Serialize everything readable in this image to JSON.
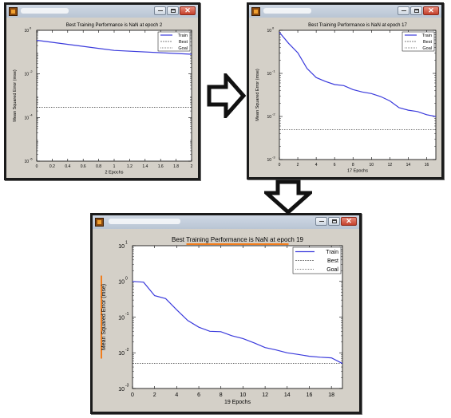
{
  "windows": [
    {
      "id": "w1",
      "title": "Best Training Performance is NaN at epoch 2",
      "xlabel": "2 Epochs",
      "ylabel": "Mean Squared Error  (mse)",
      "legend": [
        "Train",
        "Best",
        "Goal"
      ],
      "xticks": [
        "0",
        "0.2",
        "0.4",
        "0.6",
        "0.8",
        "1",
        "1.2",
        "1.4",
        "1.6",
        "1.8",
        "2"
      ],
      "ytick_exps": [
        "0",
        "-2",
        "-4",
        "-6"
      ]
    },
    {
      "id": "w2",
      "title": "Best Training Performance is NaN at epoch 17",
      "xlabel": "17 Epochs",
      "ylabel": "Mean Squared Error  (mse)",
      "legend": [
        "Train",
        "Best",
        "Goal"
      ],
      "xticks": [
        "0",
        "2",
        "4",
        "6",
        "8",
        "10",
        "12",
        "14",
        "16"
      ],
      "ytick_exps": [
        "0",
        "-1",
        "-2",
        "-3"
      ]
    },
    {
      "id": "w3",
      "title": "Best Training Performance is NaN at epoch 19",
      "xlabel": "19 Epochs",
      "ylabel": "Mean Squared Error  (mse)",
      "legend": [
        "Train",
        "Best",
        "Goal"
      ],
      "xticks": [
        "0",
        "2",
        "4",
        "6",
        "8",
        "10",
        "12",
        "14",
        "16",
        "18"
      ],
      "ytick_exps": [
        "1",
        "0",
        "-1",
        "-2",
        "-3"
      ]
    }
  ],
  "colors": {
    "train": "#3a3adc",
    "highlight": "#f07d1e",
    "window_border": "#1b1b1b"
  },
  "icons": [
    "app-icon",
    "minimize-icon",
    "maximize-icon",
    "close-icon",
    "arrow-right-icon",
    "arrow-down-icon"
  ],
  "chart_data": [
    {
      "type": "line",
      "title": "Best Training Performance is NaN at epoch 2",
      "xlabel": "2 Epochs",
      "ylabel": "Mean Squared Error  (mse)",
      "log_y": true,
      "xlim": [
        0,
        2
      ],
      "ylim": [
        1e-06,
        1
      ],
      "series": [
        {
          "name": "Train",
          "x": [
            0,
            1,
            2
          ],
          "y": [
            0.35,
            0.12,
            0.08
          ]
        },
        {
          "name": "Goal",
          "x": [
            0,
            2
          ],
          "y": [
            0.0003,
            0.0003
          ]
        }
      ],
      "legend": [
        "Train",
        "Best",
        "Goal"
      ],
      "legend_position": "top-right"
    },
    {
      "type": "line",
      "title": "Best Training Performance is NaN at epoch 17",
      "xlabel": "17 Epochs",
      "ylabel": "Mean Squared Error  (mse)",
      "log_y": true,
      "xlim": [
        0,
        17
      ],
      "ylim": [
        0.001,
        1
      ],
      "series": [
        {
          "name": "Train",
          "x": [
            0,
            1,
            2,
            3,
            4,
            5,
            6,
            7,
            8,
            9,
            10,
            11,
            12,
            13,
            14,
            15,
            16,
            17
          ],
          "y": [
            0.9,
            0.5,
            0.3,
            0.13,
            0.08,
            0.065,
            0.055,
            0.052,
            0.042,
            0.037,
            0.034,
            0.029,
            0.023,
            0.016,
            0.014,
            0.013,
            0.011,
            0.01
          ]
        },
        {
          "name": "Goal",
          "x": [
            0,
            17
          ],
          "y": [
            0.005,
            0.005
          ]
        }
      ],
      "legend": [
        "Train",
        "Best",
        "Goal"
      ],
      "legend_position": "top-right"
    },
    {
      "type": "line",
      "title": "Best Training Performance is NaN at epoch 19",
      "xlabel": "19 Epochs",
      "ylabel": "Mean Squared Error  (mse)",
      "log_y": true,
      "xlim": [
        0,
        19
      ],
      "ylim": [
        0.001,
        10
      ],
      "series": [
        {
          "name": "Train",
          "x": [
            0,
            1,
            2,
            3,
            4,
            5,
            6,
            7,
            8,
            9,
            10,
            11,
            12,
            13,
            14,
            15,
            16,
            17,
            18,
            19
          ],
          "y": [
            1.0,
            0.95,
            0.4,
            0.33,
            0.16,
            0.08,
            0.052,
            0.04,
            0.039,
            0.03,
            0.025,
            0.019,
            0.014,
            0.012,
            0.01,
            0.009,
            0.008,
            0.0075,
            0.0072,
            0.005
          ]
        },
        {
          "name": "Goal",
          "x": [
            0,
            19
          ],
          "y": [
            0.005,
            0.005
          ]
        }
      ],
      "legend": [
        "Train",
        "Best",
        "Goal"
      ],
      "legend_position": "top-right"
    }
  ]
}
